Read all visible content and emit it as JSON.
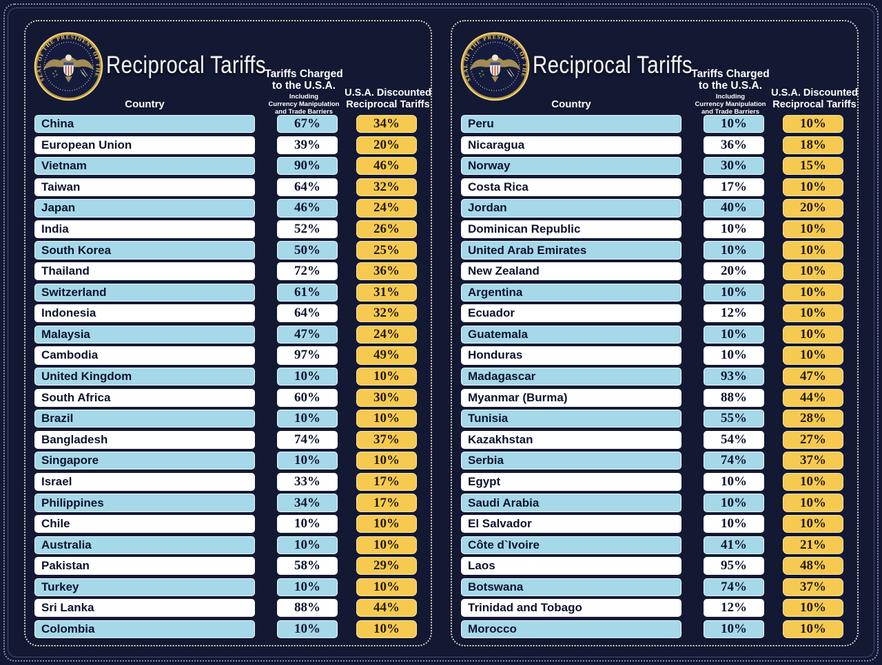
{
  "page": {
    "colors": {
      "background": "#131833",
      "row_blue": "#a5d8e9",
      "row_white": "#ffffff",
      "cell_gold": "#f6ca51",
      "text_dark": "#0c132c",
      "panel_border": "#ddd7c0",
      "page_border": "#8794c0",
      "seal_gold": "#eac65f"
    }
  },
  "seal": {
    "ring_text": "SEAL OF THE PRESIDENT OF THE UNITED STATES"
  },
  "headers": {
    "country": "Country",
    "charged_line1": "Tariffs Charged",
    "charged_line2": "to the U.S.A.",
    "charged_sub1": "Including",
    "charged_sub2": "Currency Manipulation",
    "charged_sub3": "and Trade Barriers",
    "discounted_line1": "U.S.A. Discounted",
    "discounted_line2": "Reciprocal Tariffs"
  },
  "chart_data": {
    "type": "table",
    "title": "Reciprocal Tariffs",
    "columns": [
      "Country",
      "Tariffs Charged to the U.S.A. Including Currency Manipulation and Trade Barriers",
      "U.S.A. Discounted Reciprocal Tariffs"
    ],
    "panels": [
      {
        "side": "left",
        "rows": [
          [
            "China",
            "67%",
            "34%"
          ],
          [
            "European Union",
            "39%",
            "20%"
          ],
          [
            "Vietnam",
            "90%",
            "46%"
          ],
          [
            "Taiwan",
            "64%",
            "32%"
          ],
          [
            "Japan",
            "46%",
            "24%"
          ],
          [
            "India",
            "52%",
            "26%"
          ],
          [
            "South Korea",
            "50%",
            "25%"
          ],
          [
            "Thailand",
            "72%",
            "36%"
          ],
          [
            "Switzerland",
            "61%",
            "31%"
          ],
          [
            "Indonesia",
            "64%",
            "32%"
          ],
          [
            "Malaysia",
            "47%",
            "24%"
          ],
          [
            "Cambodia",
            "97%",
            "49%"
          ],
          [
            "United Kingdom",
            "10%",
            "10%"
          ],
          [
            "South Africa",
            "60%",
            "30%"
          ],
          [
            "Brazil",
            "10%",
            "10%"
          ],
          [
            "Bangladesh",
            "74%",
            "37%"
          ],
          [
            "Singapore",
            "10%",
            "10%"
          ],
          [
            "Israel",
            "33%",
            "17%"
          ],
          [
            "Philippines",
            "34%",
            "17%"
          ],
          [
            "Chile",
            "10%",
            "10%"
          ],
          [
            "Australia",
            "10%",
            "10%"
          ],
          [
            "Pakistan",
            "58%",
            "29%"
          ],
          [
            "Turkey",
            "10%",
            "10%"
          ],
          [
            "Sri Lanka",
            "88%",
            "44%"
          ],
          [
            "Colombia",
            "10%",
            "10%"
          ]
        ]
      },
      {
        "side": "right",
        "rows": [
          [
            "Peru",
            "10%",
            "10%"
          ],
          [
            "Nicaragua",
            "36%",
            "18%"
          ],
          [
            "Norway",
            "30%",
            "15%"
          ],
          [
            "Costa Rica",
            "17%",
            "10%"
          ],
          [
            "Jordan",
            "40%",
            "20%"
          ],
          [
            "Dominican Republic",
            "10%",
            "10%"
          ],
          [
            "United Arab Emirates",
            "10%",
            "10%"
          ],
          [
            "New Zealand",
            "20%",
            "10%"
          ],
          [
            "Argentina",
            "10%",
            "10%"
          ],
          [
            "Ecuador",
            "12%",
            "10%"
          ],
          [
            "Guatemala",
            "10%",
            "10%"
          ],
          [
            "Honduras",
            "10%",
            "10%"
          ],
          [
            "Madagascar",
            "93%",
            "47%"
          ],
          [
            "Myanmar (Burma)",
            "88%",
            "44%"
          ],
          [
            "Tunisia",
            "55%",
            "28%"
          ],
          [
            "Kazakhstan",
            "54%",
            "27%"
          ],
          [
            "Serbia",
            "74%",
            "37%"
          ],
          [
            "Egypt",
            "10%",
            "10%"
          ],
          [
            "Saudi Arabia",
            "10%",
            "10%"
          ],
          [
            "El Salvador",
            "10%",
            "10%"
          ],
          [
            "Côte d`Ivoire",
            "41%",
            "21%"
          ],
          [
            "Laos",
            "95%",
            "48%"
          ],
          [
            "Botswana",
            "74%",
            "37%"
          ],
          [
            "Trinidad and Tobago",
            "12%",
            "10%"
          ],
          [
            "Morocco",
            "10%",
            "10%"
          ]
        ]
      }
    ]
  }
}
